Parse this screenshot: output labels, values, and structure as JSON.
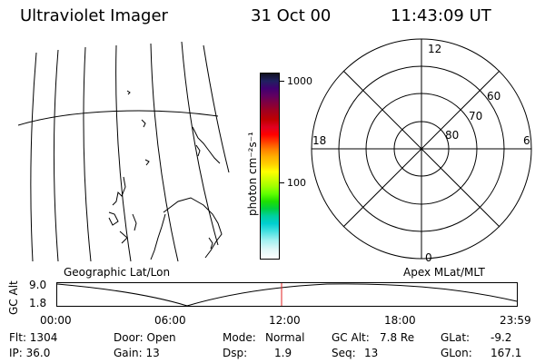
{
  "header": {
    "title": "Ultraviolet Imager",
    "date": "31 Oct 00",
    "time": "11:43:09 UT"
  },
  "colorbar": {
    "unit_label": "photon cm⁻²s⁻¹",
    "tick_labels": [
      "1000",
      "100"
    ],
    "colors": [
      "#101020",
      "#202060",
      "#402080",
      "#600060",
      "#800040",
      "#a00020",
      "#c00000",
      "#e00020",
      "#ff0000",
      "#ff4000",
      "#ff8000",
      "#ffb000",
      "#ffd000",
      "#ffff00",
      "#d0ff00",
      "#a0ff00",
      "#60ff00",
      "#20e000",
      "#00d040",
      "#00d0a0",
      "#00d0d0",
      "#40e0e0",
      "#a0f0f0",
      "#e0f8f8",
      "#ffffff"
    ]
  },
  "polar_plot": {
    "mlt_labels": {
      "top": "12",
      "left": "18",
      "right": "6",
      "bottom": "0"
    },
    "lat_labels": [
      "60",
      "70",
      "80"
    ]
  },
  "bottom_panel": {
    "left_title": "Geographic Lat/Lon",
    "right_title": "Apex MLat/MLT",
    "y_label": "GC Alt",
    "y_ticks": [
      "9.0",
      "1.8"
    ],
    "x_ticks": [
      "00:00",
      "06:00",
      "12:00",
      "18:00",
      "23:59"
    ],
    "current_time_marker": "11:43"
  },
  "footer": {
    "col1": [
      "Flt: 1304",
      "IP: 36.0"
    ],
    "col2": [
      "Door: Open",
      "Gain: 13"
    ],
    "col3_labels": [
      "Mode:",
      "Dsp:"
    ],
    "col3_values": [
      "Normal",
      "1.9"
    ],
    "col4_labels": [
      "GC Alt:",
      "Seq:"
    ],
    "col4_values": [
      "7.8 Re",
      "13"
    ],
    "col5_labels": [
      "GLat:",
      "GLon:"
    ],
    "col5_values": [
      "-9.2",
      "167.1"
    ]
  }
}
